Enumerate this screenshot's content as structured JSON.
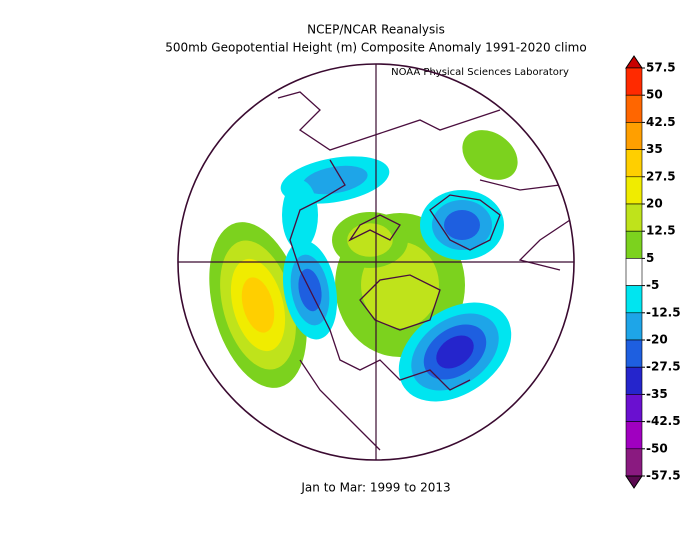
{
  "header": {
    "title": "NCEP/NCAR Reanalysis",
    "subtitle": "500mb Geopotential Height (m) Composite Anomaly 1991-2020 climo",
    "credit": "NOAA Physical Sciences Laboratory"
  },
  "footer": "Jan to Mar: 1999 to 2013",
  "colorbar": {
    "levels": [
      57.5,
      50,
      42.5,
      35,
      27.5,
      20,
      12.5,
      5,
      -5,
      -12.5,
      -20,
      -27.5,
      -35,
      -42.5,
      -50,
      -57.5
    ],
    "colors": [
      "#c80000",
      "#ff2a00",
      "#ff6600",
      "#ff9f00",
      "#ffcf00",
      "#f0ec00",
      "#bfe31b",
      "#7cd21e",
      "#ffffff",
      "#00e5f0",
      "#1ea5e8",
      "#1e5fe0",
      "#2525cc",
      "#6a10d0",
      "#a000c0",
      "#8a1a80",
      "#5a0a50"
    ]
  }
}
